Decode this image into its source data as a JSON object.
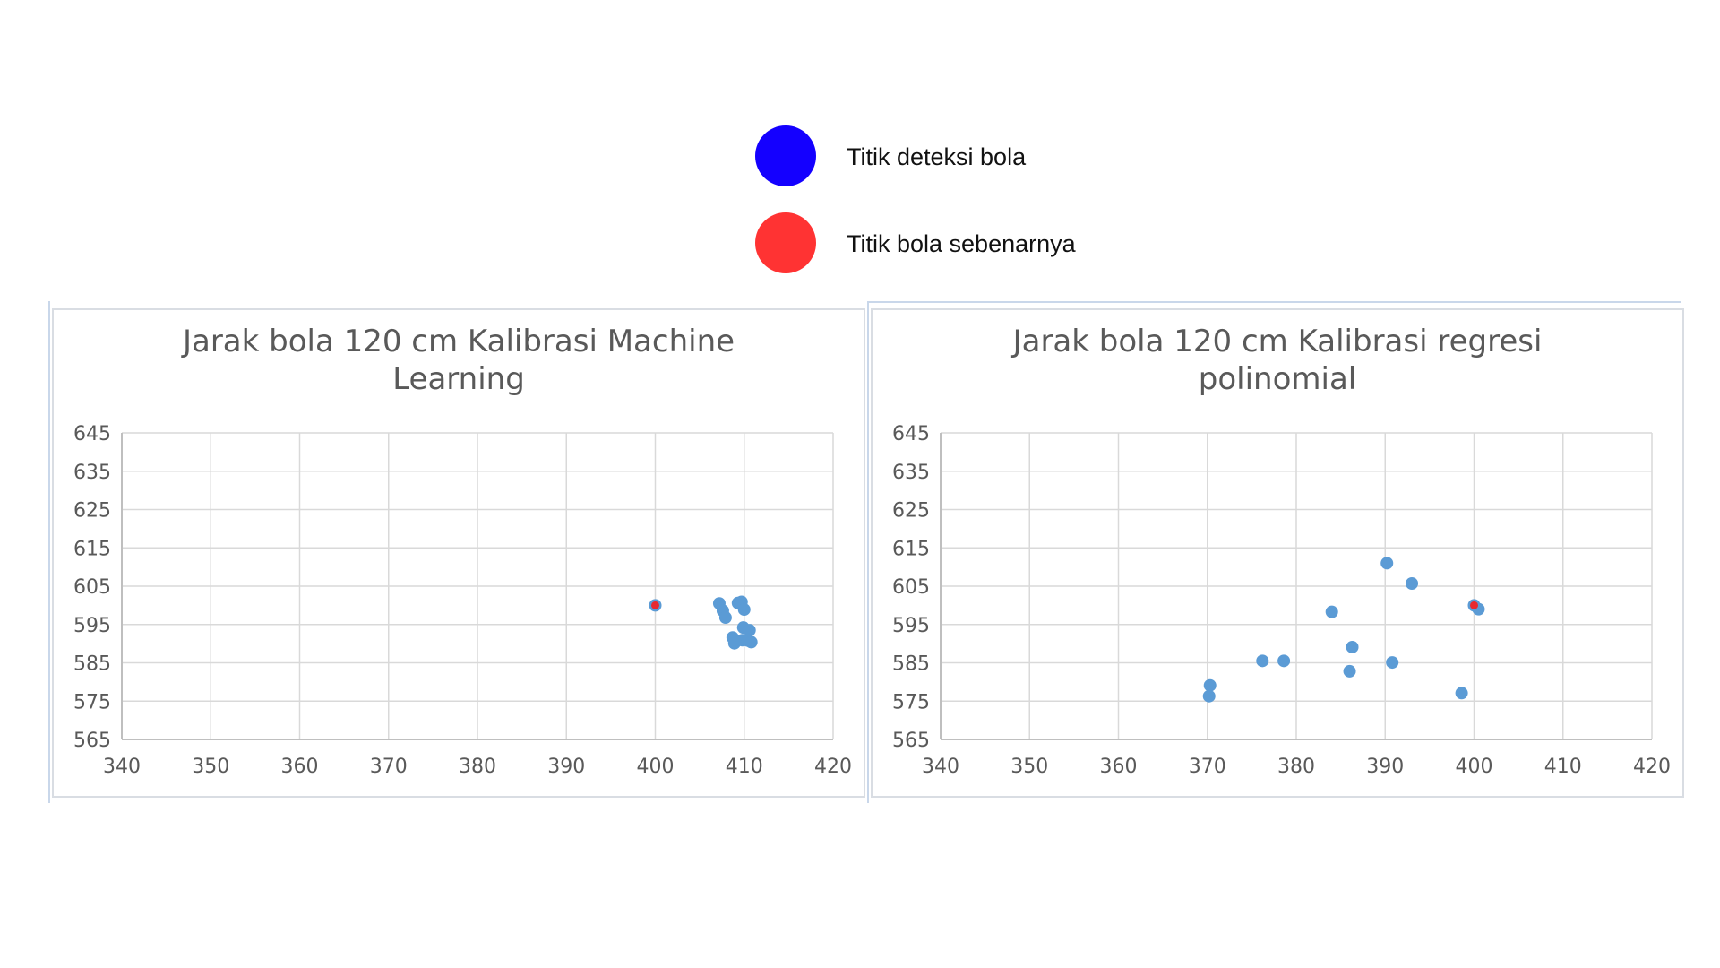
{
  "legend": {
    "items": [
      {
        "label": "Titik deteksi bola",
        "color": "#1400ff"
      },
      {
        "label": "Titik bola sebenarnya",
        "color": "#ff3333"
      }
    ]
  },
  "colors": {
    "detected_point": "#5b9bd5",
    "actual_point": "#e8292f",
    "gridline": "#d9d9d9",
    "text": "#595959"
  },
  "chart_data": [
    {
      "type": "scatter",
      "title": "Jarak bola 120 cm Kalibrasi Machine Learning",
      "title_lines": [
        "Jarak bola 120 cm Kalibrasi Machine",
        "Learning"
      ],
      "xlim": [
        340,
        420
      ],
      "ylim": [
        565,
        645
      ],
      "xticks": [
        340,
        350,
        360,
        370,
        380,
        390,
        400,
        410,
        420
      ],
      "yticks": [
        565,
        575,
        585,
        595,
        605,
        615,
        625,
        635,
        645
      ],
      "grid": true,
      "series": [
        {
          "name": "Titik deteksi bola",
          "points": [
            [
              407.2,
              600.5
            ],
            [
              407.6,
              598.6
            ],
            [
              407.9,
              596.8
            ],
            [
              409.3,
              600.6
            ],
            [
              409.7,
              600.9
            ],
            [
              410.0,
              598.9
            ],
            [
              409.9,
              594.2
            ],
            [
              410.6,
              593.5
            ],
            [
              408.7,
              591.6
            ],
            [
              408.9,
              590.1
            ],
            [
              409.8,
              590.9
            ],
            [
              410.4,
              590.8
            ],
            [
              410.8,
              590.4
            ]
          ]
        },
        {
          "name": "Titik bola sebenarnya",
          "points": [
            [
              400,
              600
            ]
          ]
        }
      ]
    },
    {
      "type": "scatter",
      "title": "Jarak bola 120 cm Kalibrasi regresi polinomial",
      "title_lines": [
        "Jarak bola 120 cm Kalibrasi regresi",
        "polinomial"
      ],
      "xlim": [
        340,
        420
      ],
      "ylim": [
        565,
        645
      ],
      "xticks": [
        340,
        350,
        360,
        370,
        380,
        390,
        400,
        410,
        420
      ],
      "yticks": [
        565,
        575,
        585,
        595,
        605,
        615,
        625,
        635,
        645
      ],
      "grid": true,
      "series": [
        {
          "name": "Titik deteksi bola",
          "points": [
            [
              390.2,
              611.0
            ],
            [
              393.0,
              605.7
            ],
            [
              384.0,
              598.3
            ],
            [
              400.5,
              599.0
            ],
            [
              386.3,
              589.1
            ],
            [
              376.2,
              585.5
            ],
            [
              378.6,
              585.5
            ],
            [
              390.8,
              585.1
            ],
            [
              386.0,
              582.8
            ],
            [
              398.6,
              577.1
            ],
            [
              370.3,
              579.1
            ],
            [
              370.2,
              576.3
            ]
          ]
        },
        {
          "name": "Titik bola sebenarnya",
          "points": [
            [
              400,
              600
            ]
          ]
        }
      ]
    }
  ]
}
